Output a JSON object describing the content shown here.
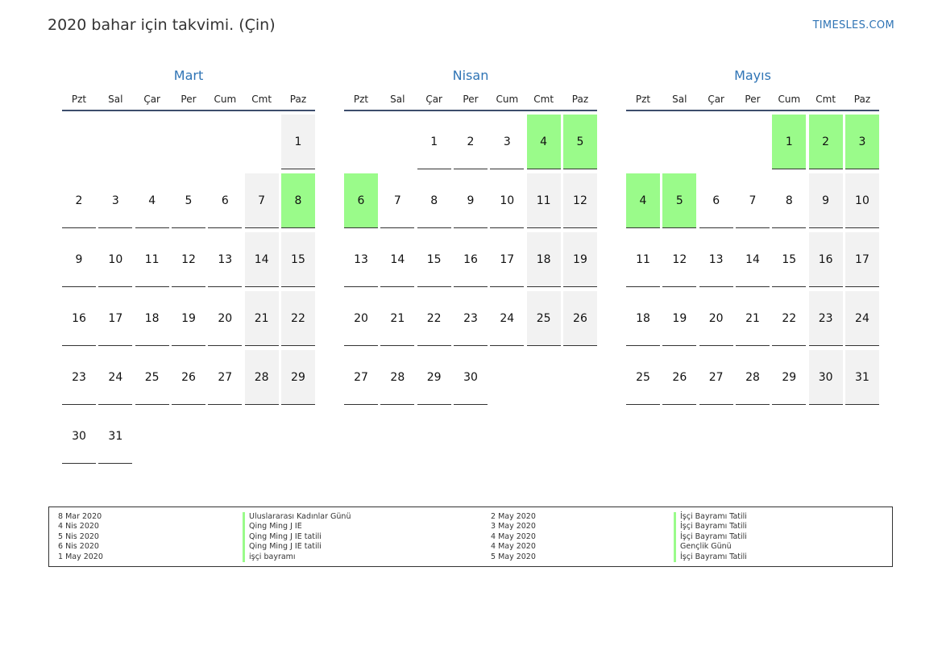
{
  "title": "2020 bahar için takvimi. (Çin)",
  "site": "TIMESLES.COM",
  "colors": {
    "holiday": "#9afb8a",
    "weekend": "#f2f2f2",
    "accent": "#2f74b5"
  },
  "weekdays": [
    "Pzt",
    "Sal",
    "Çar",
    "Per",
    "Cum",
    "Cmt",
    "Paz"
  ],
  "months": [
    {
      "name": "Mart",
      "offset": 6,
      "days": [
        "1",
        "2",
        "3",
        "4",
        "5",
        "6",
        "7",
        "8",
        "9",
        "10",
        "11",
        "12",
        "13",
        "14",
        "15",
        "16",
        "17",
        "18",
        "19",
        "20",
        "21",
        "22",
        "23",
        "24",
        "25",
        "26",
        "27",
        "28",
        "29",
        "30",
        "31"
      ],
      "holidays": [
        "8"
      ]
    },
    {
      "name": "Nisan",
      "offset": 2,
      "days": [
        "1",
        "2",
        "3",
        "4",
        "5",
        "6",
        "7",
        "8",
        "9",
        "10",
        "11",
        "12",
        "13",
        "14",
        "15",
        "16",
        "17",
        "18",
        "19",
        "20",
        "21",
        "22",
        "23",
        "24",
        "25",
        "26",
        "27",
        "28",
        "29",
        "30"
      ],
      "holidays": [
        "4",
        "5",
        "6"
      ]
    },
    {
      "name": "Mayıs",
      "offset": 4,
      "days": [
        "1",
        "2",
        "3",
        "4",
        "5",
        "6",
        "7",
        "8",
        "9",
        "10",
        "11",
        "12",
        "13",
        "14",
        "15",
        "16",
        "17",
        "18",
        "19",
        "20",
        "21",
        "22",
        "23",
        "24",
        "25",
        "26",
        "27",
        "28",
        "29",
        "30",
        "31"
      ],
      "holidays": [
        "1",
        "2",
        "3",
        "4",
        "5"
      ]
    }
  ],
  "legend": {
    "left": [
      {
        "date": "8 Mar 2020",
        "name": "Uluslararası Kadınlar Günü"
      },
      {
        "date": "4 Nis 2020",
        "name": "Qing Ming J IE"
      },
      {
        "date": "5 Nis 2020",
        "name": "Qing Ming J IE tatili"
      },
      {
        "date": "6 Nis 2020",
        "name": "Qing Ming J IE tatili"
      },
      {
        "date": "1 May 2020",
        "name": "işçi bayramı"
      }
    ],
    "right": [
      {
        "date": "2 May 2020",
        "name": "İşçi Bayramı Tatili"
      },
      {
        "date": "3 May 2020",
        "name": "İşçi Bayramı Tatili"
      },
      {
        "date": "4 May 2020",
        "name": "İşçi Bayramı Tatili"
      },
      {
        "date": "4 May 2020",
        "name": "Gençlik Günü"
      },
      {
        "date": "5 May 2020",
        "name": "İşçi Bayramı Tatili"
      }
    ]
  }
}
